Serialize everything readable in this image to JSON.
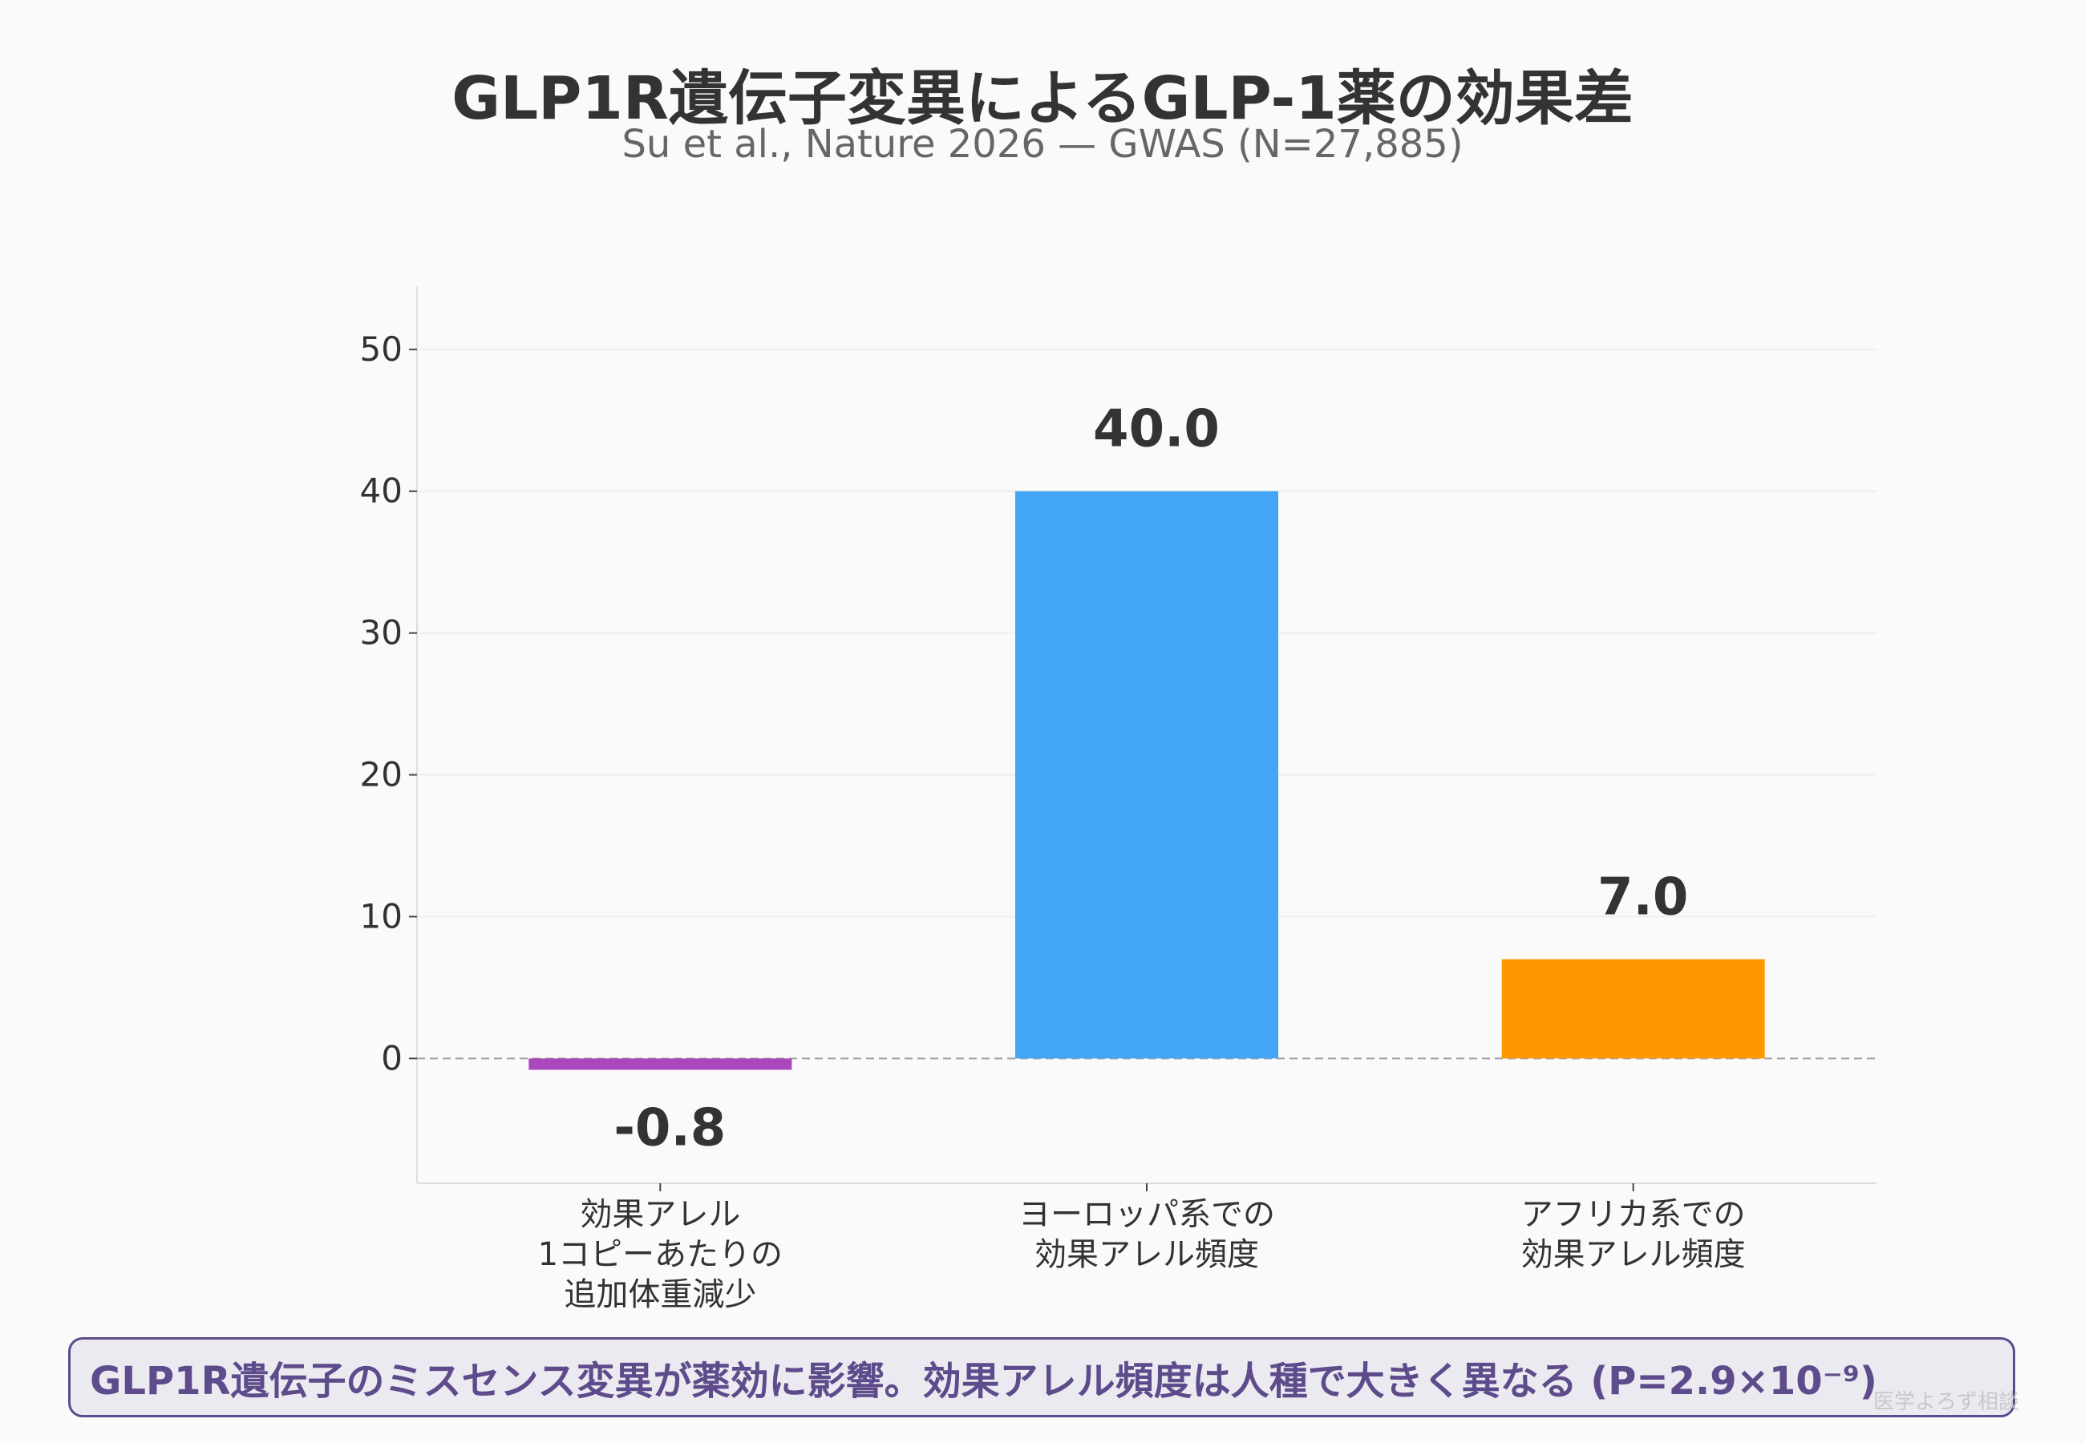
{
  "chart_data": {
    "type": "bar",
    "title": "GLP1R遺伝子変異によるGLP-1薬の効果差",
    "subtitle": "Su et al., Nature 2026 — GWAS (N=27,885)",
    "categories": [
      [
        "効果アレル",
        "1コピーあたりの",
        "追加体重減少"
      ],
      [
        "ヨーロッパ系での",
        "効果アレル頻度"
      ],
      [
        "アフリカ系での",
        "効果アレル頻度"
      ]
    ],
    "values": [
      -0.8,
      40.0,
      7.0
    ],
    "value_labels": [
      "-0.8",
      "40.0",
      "7.0"
    ],
    "colors": [
      "#ab47bc",
      "#42a5f5",
      "#ff9800"
    ],
    "yticks": [
      0,
      10,
      20,
      30,
      40,
      50
    ],
    "ylim": [
      -8.8,
      54.4
    ],
    "xlabel": "",
    "ylabel": "",
    "grid": true,
    "zero_line": "dashed"
  },
  "footer": {
    "text": "GLP1R遺伝子のミスセンス変異が薬効に影響。効果アレル頻度は人種で大きく異なる (P=2.9×10⁻⁹)"
  },
  "watermark": "医学よろず相談"
}
